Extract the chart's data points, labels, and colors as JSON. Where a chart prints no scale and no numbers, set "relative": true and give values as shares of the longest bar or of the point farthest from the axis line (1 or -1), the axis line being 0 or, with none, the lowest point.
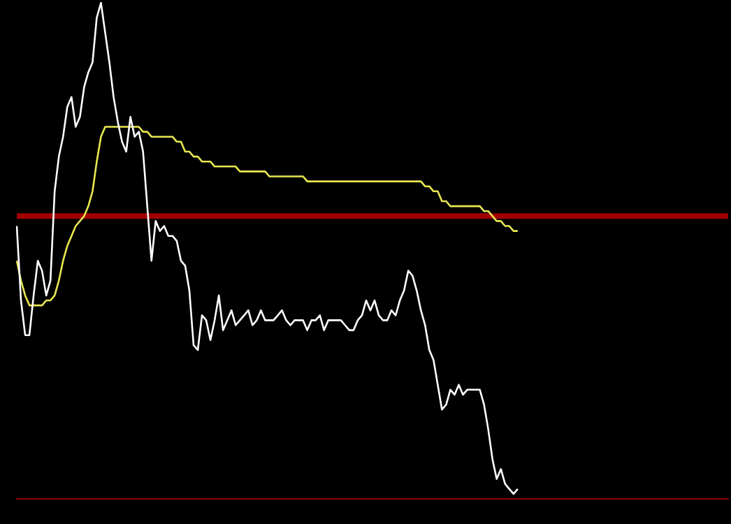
{
  "chart_data": {
    "type": "line",
    "relative": true,
    "legend": false,
    "marker": "none",
    "line_style": "solid",
    "categories": [
      null,
      null,
      null,
      null,
      null,
      null,
      null,
      null,
      null,
      null,
      null,
      null,
      null,
      null,
      null,
      null,
      null,
      null,
      null,
      null,
      null,
      null,
      null,
      null,
      null,
      null,
      null,
      null,
      null,
      null,
      null,
      null,
      null,
      null,
      null,
      null,
      null,
      null,
      null,
      null,
      null,
      null,
      null,
      null,
      null,
      null,
      null,
      null,
      null,
      null,
      null,
      null,
      null,
      null,
      null,
      null,
      null,
      null,
      null,
      null,
      null,
      null,
      null,
      null,
      null,
      null,
      null,
      null,
      null,
      null,
      null,
      null,
      null,
      null,
      null,
      null,
      null,
      null,
      null,
      null,
      null,
      null,
      null,
      null,
      null,
      null,
      null,
      null,
      null,
      null,
      null,
      null,
      null,
      null,
      null,
      null,
      null,
      null,
      null,
      null,
      null,
      null,
      null,
      null,
      null,
      null,
      null,
      null,
      null,
      null,
      null,
      null,
      null,
      null,
      null,
      null,
      null,
      null,
      null,
      null,
      null,
      null,
      null,
      null,
      null,
      null,
      null,
      null,
      null,
      null,
      null,
      null,
      null,
      null,
      null,
      null,
      null,
      null,
      null,
      null,
      null,
      null,
      null,
      null,
      null,
      null,
      null,
      null,
      null,
      null,
      null,
      null,
      null,
      null,
      null,
      null,
      null,
      null,
      null,
      null,
      null,
      null,
      null,
      null,
      null,
      null,
      null,
      null,
      null,
      null
    ],
    "ref_lines": [
      {
        "axis": "y",
        "value": 0.57,
        "color": "#a00000"
      }
    ],
    "series": [
      {
        "color": "#ffffff",
        "values": [
          0.55,
          0.4,
          0.33,
          0.33,
          0.41,
          0.48,
          0.46,
          0.41,
          0.44,
          0.62,
          0.69,
          0.73,
          0.79,
          0.81,
          0.75,
          0.77,
          0.83,
          0.86,
          0.88,
          0.97,
          1,
          0.94,
          0.88,
          0.81,
          0.76,
          0.72,
          0.7,
          0.77,
          0.73,
          0.74,
          0.7,
          0.59,
          0.48,
          0.56,
          0.54,
          0.55,
          0.53,
          0.53,
          0.52,
          0.48,
          0.47,
          0.42,
          0.31,
          0.3,
          0.37,
          0.36,
          0.32,
          0.36,
          0.41,
          0.34,
          0.36,
          0.38,
          0.35,
          0.36,
          0.37,
          0.38,
          0.35,
          0.36,
          0.38,
          0.36,
          0.36,
          0.36,
          0.37,
          0.38,
          0.36,
          0.35,
          0.36,
          0.36,
          0.36,
          0.34,
          0.36,
          0.36,
          0.37,
          0.34,
          0.36,
          0.36,
          0.36,
          0.36,
          0.35,
          0.34,
          0.34,
          0.36,
          0.37,
          0.4,
          0.38,
          0.4,
          0.37,
          0.36,
          0.36,
          0.38,
          0.37,
          0.4,
          0.42,
          0.46,
          0.45,
          0.42,
          0.38,
          0.35,
          0.3,
          0.28,
          0.23,
          0.18,
          0.19,
          0.22,
          0.21,
          0.23,
          0.21,
          0.22,
          0.22,
          0.22,
          0.22,
          0.19,
          0.14,
          0.08,
          0.04,
          0.06,
          0.03,
          0.02,
          0.01,
          0.02,
          null,
          null,
          null,
          null,
          null,
          null,
          null,
          null,
          null,
          null,
          null,
          null,
          null,
          null,
          null,
          null,
          null,
          null,
          null,
          null,
          null,
          null,
          null,
          null,
          null,
          null,
          null,
          null,
          null,
          null,
          null,
          null,
          null,
          null,
          null,
          null,
          null,
          null,
          null,
          null,
          null,
          null,
          null,
          null,
          null,
          null,
          null,
          null,
          null,
          null
        ]
      },
      {
        "color": "#e8e850",
        "values": [
          0.48,
          0.44,
          0.41,
          0.39,
          0.39,
          0.39,
          0.39,
          0.4,
          0.4,
          0.41,
          0.44,
          0.48,
          0.51,
          0.53,
          0.55,
          0.56,
          0.57,
          0.59,
          0.62,
          0.68,
          0.73,
          0.75,
          0.75,
          0.75,
          0.75,
          0.75,
          0.75,
          0.75,
          0.75,
          0.75,
          0.74,
          0.74,
          0.73,
          0.73,
          0.73,
          0.73,
          0.73,
          0.73,
          0.72,
          0.72,
          0.7,
          0.7,
          0.69,
          0.69,
          0.68,
          0.68,
          0.68,
          0.67,
          0.67,
          0.67,
          0.67,
          0.67,
          0.67,
          0.66,
          0.66,
          0.66,
          0.66,
          0.66,
          0.66,
          0.66,
          0.65,
          0.65,
          0.65,
          0.65,
          0.65,
          0.65,
          0.65,
          0.65,
          0.65,
          0.64,
          0.64,
          0.64,
          0.64,
          0.64,
          0.64,
          0.64,
          0.64,
          0.64,
          0.64,
          0.64,
          0.64,
          0.64,
          0.64,
          0.64,
          0.64,
          0.64,
          0.64,
          0.64,
          0.64,
          0.64,
          0.64,
          0.64,
          0.64,
          0.64,
          0.64,
          0.64,
          0.64,
          0.63,
          0.63,
          0.62,
          0.62,
          0.6,
          0.6,
          0.59,
          0.59,
          0.59,
          0.59,
          0.59,
          0.59,
          0.59,
          0.59,
          0.58,
          0.58,
          0.57,
          0.56,
          0.56,
          0.55,
          0.55,
          0.54,
          0.54,
          null,
          null,
          null,
          null,
          null,
          null,
          null,
          null,
          null,
          null,
          null,
          null,
          null,
          null,
          null,
          null,
          null,
          null,
          null,
          null,
          null,
          null,
          null,
          null,
          null,
          null,
          null,
          null,
          null,
          null,
          null,
          null,
          null,
          null,
          null,
          null,
          null,
          null,
          null,
          null,
          null,
          null,
          null,
          null,
          null,
          null,
          null,
          null,
          null,
          null
        ]
      }
    ]
  }
}
